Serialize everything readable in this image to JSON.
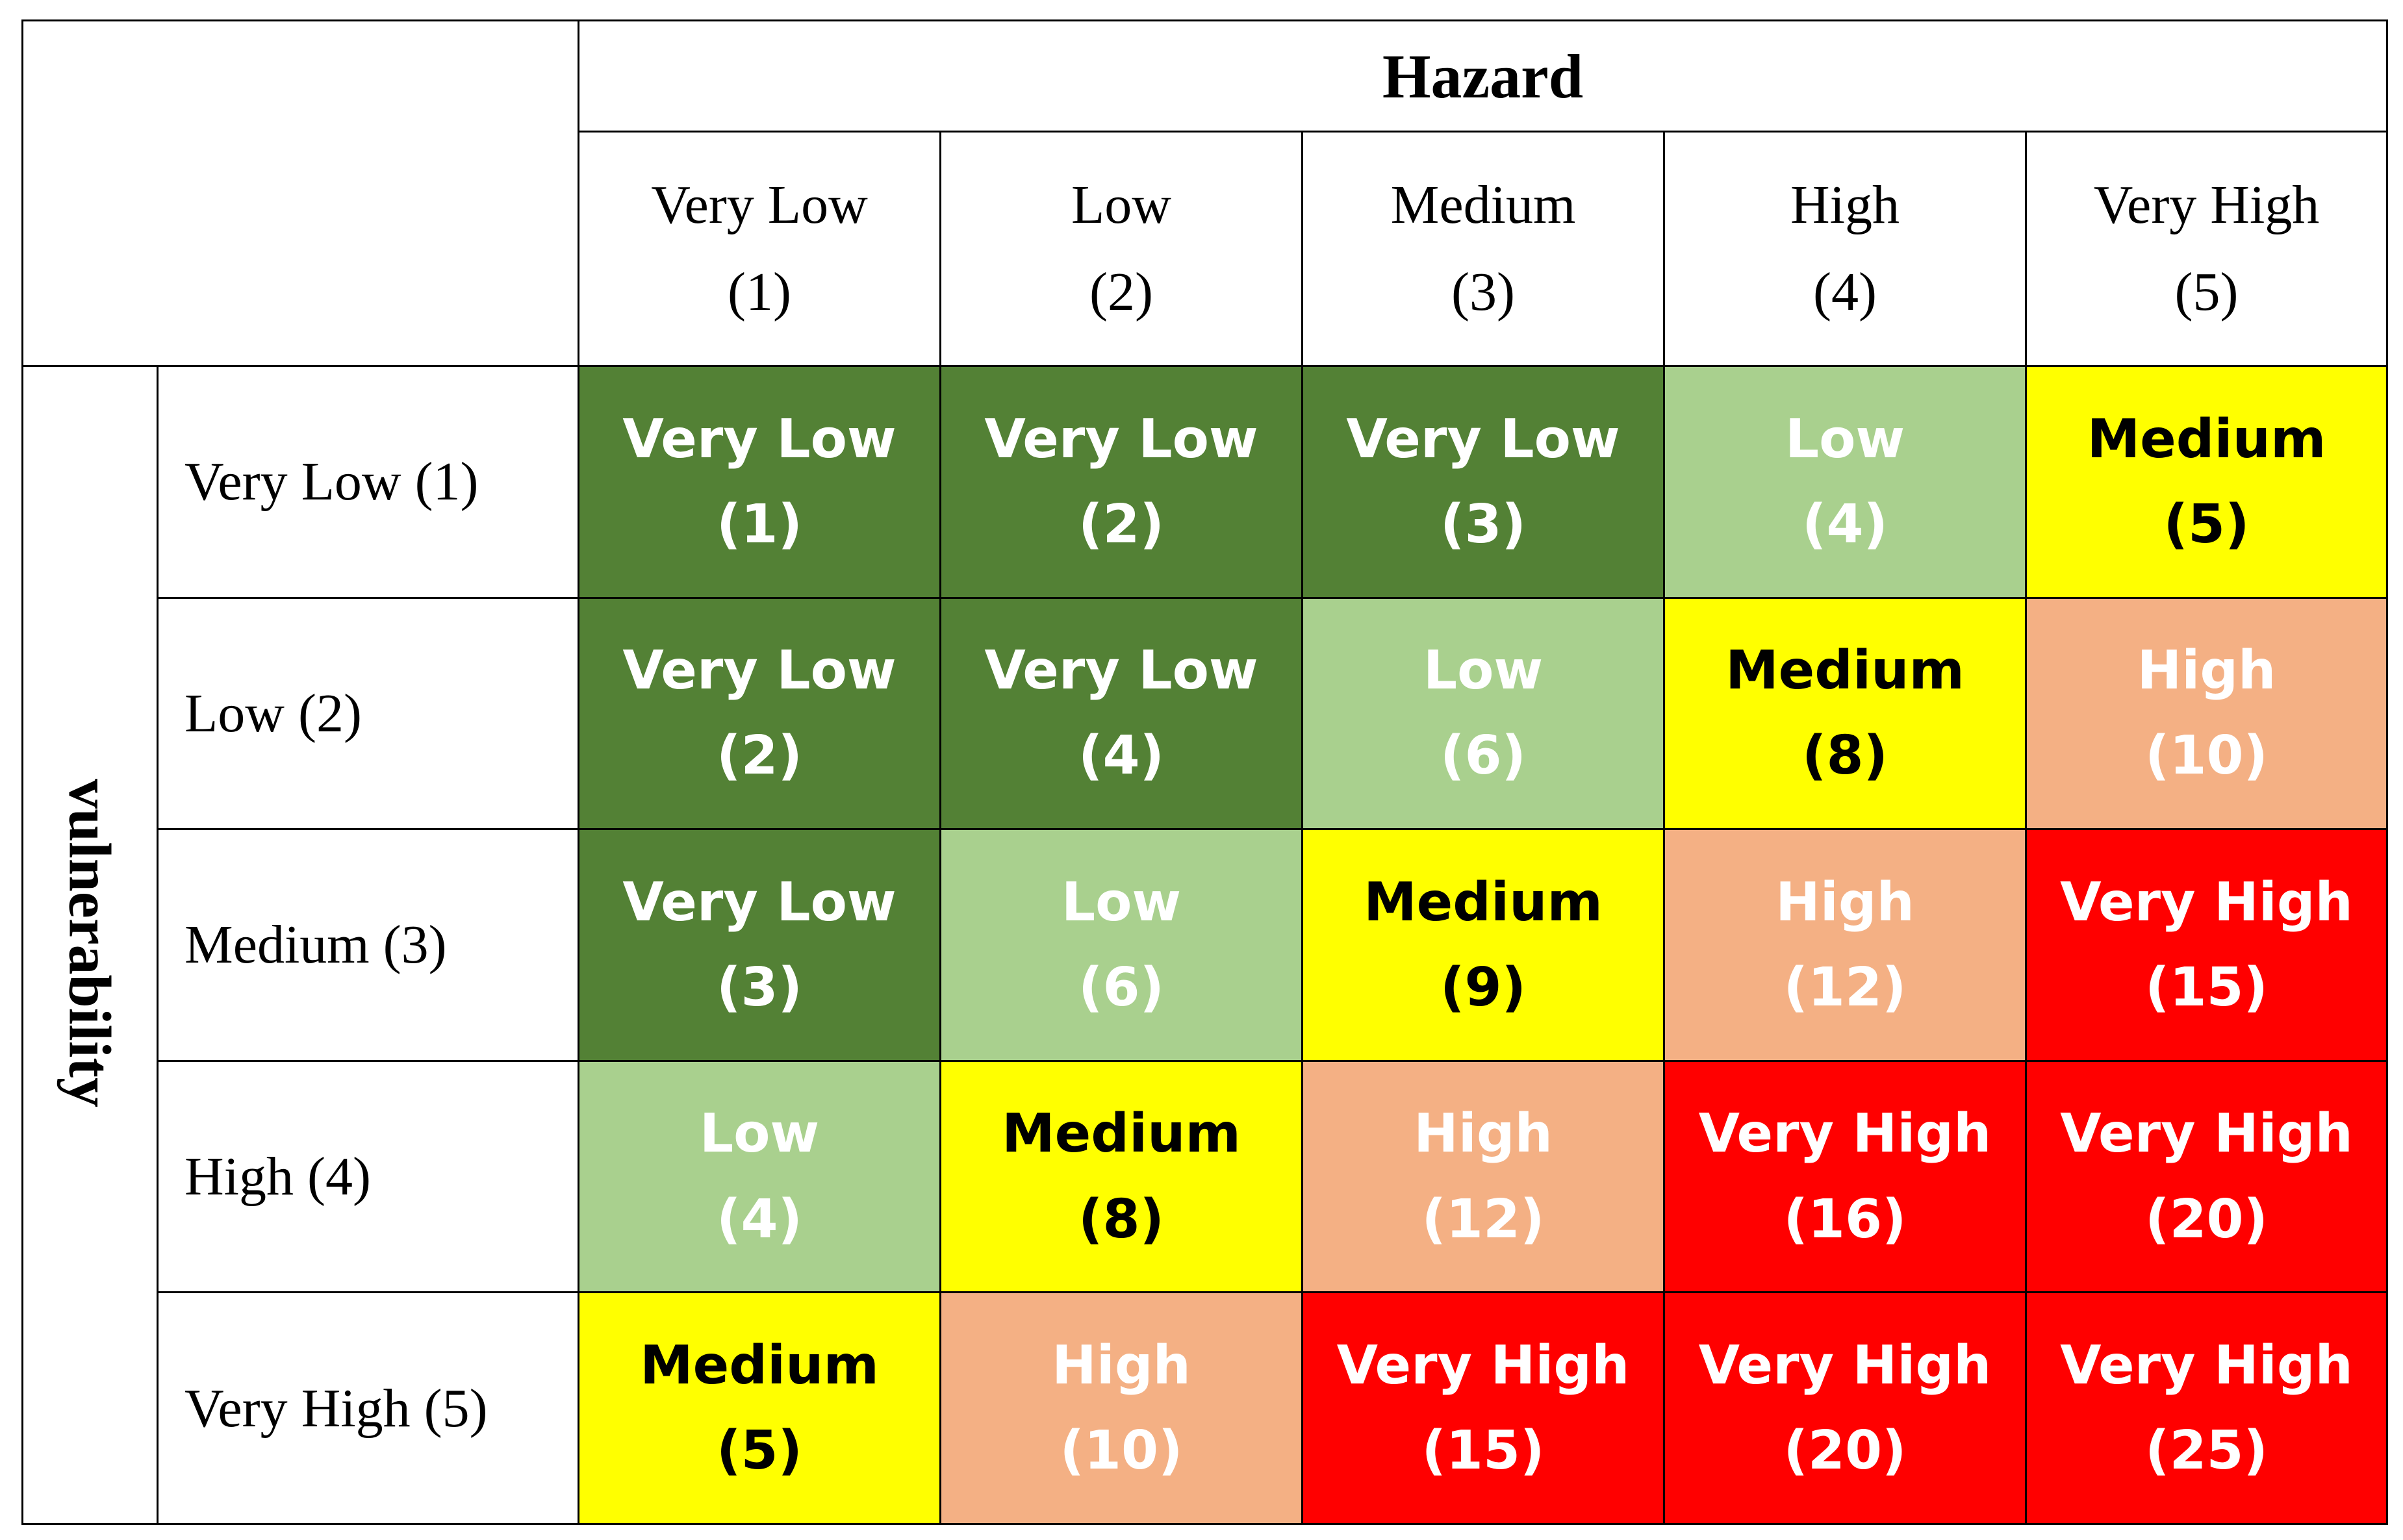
{
  "chart_data": {
    "type": "table",
    "title": "",
    "column_axis_label": "Hazard",
    "row_axis_label": "vulnerability",
    "columns": [
      {
        "label": "Very Low",
        "score": "(1)"
      },
      {
        "label": "Low",
        "score": "(2)"
      },
      {
        "label": "Medium",
        "score": "(3)"
      },
      {
        "label": "High",
        "score": "(4)"
      },
      {
        "label": "Very High",
        "score": "(5)"
      }
    ],
    "rows": [
      {
        "label": "Very Low (1)",
        "cells": [
          {
            "level": "Very Low",
            "value": 1
          },
          {
            "level": "Very Low",
            "value": 2
          },
          {
            "level": "Very Low",
            "value": 3
          },
          {
            "level": "Low",
            "value": 4
          },
          {
            "level": "Medium",
            "value": 5
          }
        ]
      },
      {
        "label": "Low (2)",
        "cells": [
          {
            "level": "Very Low",
            "value": 2
          },
          {
            "level": "Very Low",
            "value": 4
          },
          {
            "level": "Low",
            "value": 6
          },
          {
            "level": "Medium",
            "value": 8
          },
          {
            "level": "High",
            "value": 10
          }
        ]
      },
      {
        "label": "Medium (3)",
        "cells": [
          {
            "level": "Very Low",
            "value": 3
          },
          {
            "level": "Low",
            "value": 6
          },
          {
            "level": "Medium",
            "value": 9
          },
          {
            "level": "High",
            "value": 12
          },
          {
            "level": "Very High",
            "value": 15
          }
        ]
      },
      {
        "label": "High (4)",
        "cells": [
          {
            "level": "Low",
            "value": 4
          },
          {
            "level": "Medium",
            "value": 8
          },
          {
            "level": "High",
            "value": 12
          },
          {
            "level": "Very High",
            "value": 16
          },
          {
            "level": "Very High",
            "value": 20
          }
        ]
      },
      {
        "label": "Very High (5)",
        "cells": [
          {
            "level": "Medium",
            "value": 5
          },
          {
            "level": "High",
            "value": 10
          },
          {
            "level": "Very High",
            "value": 15
          },
          {
            "level": "Very High",
            "value": 20
          },
          {
            "level": "Very High",
            "value": 25
          }
        ]
      }
    ],
    "level_colors": {
      "Very Low": {
        "background": "#538135",
        "text": "#ffffff"
      },
      "Low": {
        "background": "#a9d08e",
        "text": "#ffffff"
      },
      "Medium": {
        "background": "#ffff00",
        "text": "#000000"
      },
      "High": {
        "background": "#f4b084",
        "text": "#ffffff"
      },
      "Very High": {
        "background": "#ff0000",
        "text": "#ffffff"
      }
    }
  }
}
